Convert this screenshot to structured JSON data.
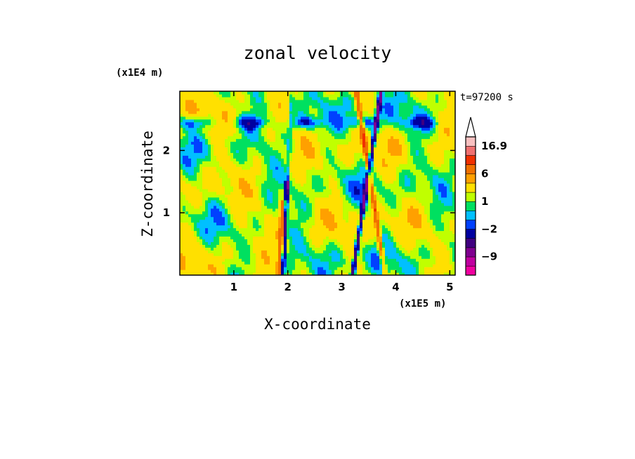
{
  "chart_data": {
    "type": "heatmap",
    "title": "zonal velocity",
    "xlabel": "X-coordinate",
    "ylabel": "Z-coordinate",
    "x_multiplier": "(x1E5 m)",
    "y_multiplier": "(x1E4 m)",
    "time_label": "t=97200 s",
    "xlim": [
      0,
      5.1
    ],
    "ylim": [
      0,
      2.95
    ],
    "x_ticks": [
      "1",
      "2",
      "3",
      "4",
      "5"
    ],
    "y_ticks": [
      "1",
      "2"
    ],
    "colorbar": {
      "labels": [
        "16.9",
        "6",
        "1",
        "-2",
        "-9"
      ],
      "levels": [
        -16,
        -12,
        -9,
        -6,
        -4,
        -2,
        -1,
        0,
        1,
        2,
        4,
        6,
        9,
        12,
        16.9
      ],
      "colors": [
        "#f000a0",
        "#c000a0",
        "#800090",
        "#400080",
        "#0000a0",
        "#0040ff",
        "#00c0ff",
        "#00e060",
        "#c0ff00",
        "#ffe000",
        "#ffa000",
        "#f07000",
        "#f03000",
        "#f07070",
        "#f8c0c0"
      ],
      "extend": "max"
    },
    "field_description": "2D contour field of zonal velocity, dominated by values between -2 and 4 with strong positive/negative streaks near x≈2 and x≈3.5"
  }
}
